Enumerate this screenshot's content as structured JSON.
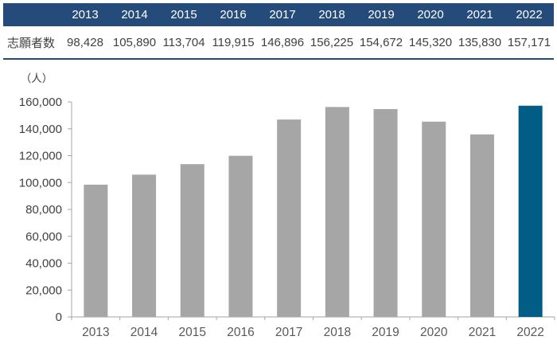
{
  "table": {
    "row_label": "志願者数",
    "years": [
      "2013",
      "2014",
      "2015",
      "2016",
      "2017",
      "2018",
      "2019",
      "2020",
      "2021",
      "2022"
    ],
    "values": [
      "98,428",
      "105,890",
      "113,704",
      "119,915",
      "146,896",
      "156,225",
      "154,672",
      "145,320",
      "135,830",
      "157,171"
    ]
  },
  "chart_data": {
    "type": "bar",
    "title": "",
    "xlabel": "",
    "ylabel": "",
    "unit_label": "（人）",
    "categories": [
      "2013",
      "2014",
      "2015",
      "2016",
      "2017",
      "2018",
      "2019",
      "2020",
      "2021",
      "2022"
    ],
    "values": [
      98428,
      105890,
      113704,
      119915,
      146896,
      156225,
      154672,
      145320,
      135830,
      157171
    ],
    "ylim": [
      0,
      160000
    ],
    "ytick_step": 20000,
    "grid": false,
    "legend": "none",
    "highlight_index": 9
  },
  "colors": {
    "header_bg": "#254B7A",
    "header_text": "#FFFFFF",
    "value_text": "#3F3F3F",
    "table_border": "#254B7A",
    "bar_fill": "#A6A6A6",
    "bar_highlight": "#015C86",
    "axis_line": "#A6A6A6",
    "ytick_text": "#404040",
    "xtick_text": "#595959",
    "unit_text": "#404040"
  }
}
